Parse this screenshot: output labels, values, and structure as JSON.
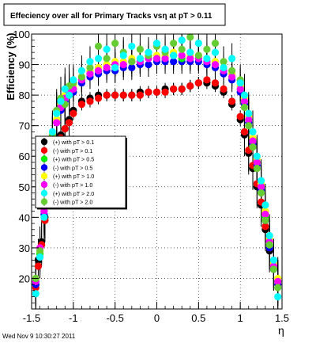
{
  "chart_data": {
    "type": "scatter",
    "title": "Effeciency over all for Primary Tracks vsη at pT > 0.11",
    "xlabel": "η",
    "ylabel": "Efficiency (%)",
    "xlim": [
      -1.5,
      1.5
    ],
    "ylim": [
      10,
      100
    ],
    "x_ticks": [
      -1.5,
      -1,
      -0.5,
      0,
      0.5,
      1,
      1.5
    ],
    "x_tick_labels": [
      "-1.5",
      "-1",
      "-0.5",
      "0",
      "0.5",
      "1",
      "1.5"
    ],
    "y_ticks": [
      20,
      30,
      40,
      50,
      60,
      70,
      80,
      90,
      100
    ],
    "y_tick_labels": [
      "20",
      "30",
      "40",
      "50",
      "60",
      "70",
      "80",
      "90",
      "100"
    ],
    "grid": true,
    "legend_position": "left-middle",
    "footer": "Wed Nov  9 10:30:27 2011",
    "series": [
      {
        "name": "(+) with pT > 0.1",
        "color": "#000000",
        "x": [
          -1.45,
          -1.42,
          -1.38,
          -1.34,
          -1.3,
          -1.25,
          -1.2,
          -1.15,
          -1.1,
          -1.05,
          -1.0,
          -0.9,
          -0.8,
          -0.7,
          -0.6,
          -0.5,
          -0.4,
          -0.3,
          -0.2,
          -0.1,
          0.0,
          0.1,
          0.2,
          0.3,
          0.4,
          0.5,
          0.6,
          0.7,
          0.8,
          0.9,
          1.0,
          1.05,
          1.1,
          1.15,
          1.2,
          1.25,
          1.3,
          1.35,
          1.4,
          1.45
        ],
        "y": [
          18,
          26,
          32,
          40,
          52,
          60,
          64,
          67,
          69,
          72,
          75,
          78,
          79,
          80,
          80,
          80,
          80,
          80,
          81,
          81,
          81,
          82,
          82,
          82,
          83,
          84,
          84,
          83,
          81,
          77,
          72,
          67,
          61,
          56,
          50,
          44,
          36,
          29,
          23,
          19
        ]
      },
      {
        "name": "(-) with pT > 0.1",
        "color": "#ff0000",
        "x": [
          -1.45,
          -1.42,
          -1.38,
          -1.34,
          -1.3,
          -1.25,
          -1.2,
          -1.15,
          -1.1,
          -1.05,
          -1.0,
          -0.9,
          -0.8,
          -0.7,
          -0.6,
          -0.5,
          -0.4,
          -0.3,
          -0.2,
          -0.1,
          0.0,
          0.1,
          0.2,
          0.3,
          0.4,
          0.5,
          0.6,
          0.7,
          0.8,
          0.9,
          1.0,
          1.05,
          1.1,
          1.15,
          1.2,
          1.25,
          1.3,
          1.35,
          1.4,
          1.45
        ],
        "y": [
          17,
          24,
          31,
          39,
          51,
          59,
          63,
          66,
          69,
          71,
          74,
          77,
          78,
          79,
          80,
          80,
          80,
          80,
          80,
          81,
          81,
          81,
          82,
          82,
          83,
          84,
          85,
          84,
          82,
          78,
          73,
          68,
          62,
          57,
          51,
          45,
          37,
          30,
          24,
          18
        ]
      },
      {
        "name": "(+) with pT > 0.5",
        "color": "#00ee00",
        "x": [
          -1.45,
          -1.4,
          -1.35,
          -1.3,
          -1.25,
          -1.2,
          -1.15,
          -1.1,
          -1.05,
          -1.0,
          -0.9,
          -0.8,
          -0.7,
          -0.6,
          -0.5,
          -0.4,
          -0.3,
          -0.2,
          -0.1,
          0.0,
          0.1,
          0.2,
          0.3,
          0.4,
          0.5,
          0.6,
          0.7,
          0.8,
          0.9,
          1.0,
          1.05,
          1.1,
          1.15,
          1.2,
          1.25,
          1.3,
          1.35,
          1.4,
          1.45
        ],
        "y": [
          19,
          28,
          42,
          56,
          66,
          72,
          76,
          79,
          80,
          82,
          85,
          87,
          88,
          89,
          90,
          90,
          91,
          91,
          92,
          92,
          92,
          93,
          92,
          92,
          92,
          91,
          90,
          88,
          86,
          82,
          78,
          72,
          65,
          58,
          50,
          40,
          31,
          24,
          19
        ]
      },
      {
        "name": "(-) with pT > 0.5",
        "color": "#0000ff",
        "x": [
          -1.45,
          -1.4,
          -1.35,
          -1.3,
          -1.25,
          -1.2,
          -1.15,
          -1.1,
          -1.05,
          -1.0,
          -0.9,
          -0.8,
          -0.7,
          -0.6,
          -0.5,
          -0.4,
          -0.3,
          -0.2,
          -0.1,
          0.0,
          0.1,
          0.2,
          0.3,
          0.4,
          0.5,
          0.6,
          0.7,
          0.8,
          0.9,
          1.0,
          1.05,
          1.1,
          1.15,
          1.2,
          1.25,
          1.3,
          1.35,
          1.4,
          1.45
        ],
        "y": [
          18,
          27,
          41,
          55,
          65,
          71,
          75,
          78,
          80,
          81,
          84,
          86,
          87,
          88,
          88,
          89,
          89,
          90,
          90,
          91,
          91,
          91,
          91,
          91,
          91,
          90,
          89,
          87,
          85,
          81,
          77,
          71,
          64,
          57,
          49,
          39,
          30,
          23,
          18
        ]
      },
      {
        "name": "(+) with pT > 1.0",
        "color": "#ffff00",
        "x": [
          -1.45,
          -1.4,
          -1.35,
          -1.3,
          -1.25,
          -1.2,
          -1.15,
          -1.1,
          -1.05,
          -1.0,
          -0.9,
          -0.8,
          -0.7,
          -0.6,
          -0.5,
          -0.4,
          -0.3,
          -0.2,
          -0.1,
          0.0,
          0.1,
          0.2,
          0.3,
          0.4,
          0.5,
          0.6,
          0.7,
          0.8,
          0.9,
          1.0,
          1.05,
          1.1,
          1.15,
          1.2,
          1.25,
          1.3,
          1.35,
          1.4,
          1.45
        ],
        "y": [
          20,
          29,
          43,
          57,
          67,
          72,
          77,
          80,
          81,
          83,
          86,
          88,
          89,
          90,
          91,
          91,
          92,
          92,
          93,
          93,
          93,
          94,
          93,
          93,
          93,
          92,
          91,
          89,
          87,
          83,
          79,
          73,
          66,
          59,
          51,
          42,
          33,
          25,
          20
        ]
      },
      {
        "name": "(-) with pT > 1.0",
        "color": "#ff00ff",
        "x": [
          -1.45,
          -1.4,
          -1.35,
          -1.3,
          -1.25,
          -1.2,
          -1.15,
          -1.1,
          -1.05,
          -1.0,
          -0.9,
          -0.8,
          -0.7,
          -0.6,
          -0.5,
          -0.4,
          -0.3,
          -0.2,
          -0.1,
          0.0,
          0.1,
          0.2,
          0.3,
          0.4,
          0.5,
          0.6,
          0.7,
          0.8,
          0.9,
          1.0,
          1.05,
          1.1,
          1.15,
          1.2,
          1.25,
          1.3,
          1.35,
          1.4,
          1.45
        ],
        "y": [
          19,
          30,
          42,
          55,
          66,
          71,
          76,
          79,
          81,
          82,
          85,
          87,
          88,
          89,
          90,
          90,
          91,
          91,
          92,
          92,
          92,
          93,
          93,
          92,
          92,
          91,
          90,
          88,
          86,
          82,
          78,
          72,
          65,
          58,
          50,
          41,
          32,
          24,
          19
        ]
      },
      {
        "name": "(+) with pT > 2.0",
        "color": "#00ffff",
        "x": [
          -1.45,
          -1.4,
          -1.35,
          -1.3,
          -1.25,
          -1.2,
          -1.15,
          -1.1,
          -1.05,
          -1.0,
          -0.9,
          -0.8,
          -0.7,
          -0.6,
          -0.5,
          -0.4,
          -0.3,
          -0.2,
          -0.1,
          0.0,
          0.1,
          0.2,
          0.3,
          0.4,
          0.5,
          0.6,
          0.7,
          0.8,
          0.9,
          1.0,
          1.05,
          1.1,
          1.15,
          1.2,
          1.25,
          1.3,
          1.35,
          1.4,
          1.45
        ],
        "y": [
          15,
          27,
          40,
          54,
          68,
          74,
          78,
          82,
          80,
          85,
          88,
          91,
          92,
          95,
          89,
          93,
          96,
          92,
          94,
          97,
          95,
          93,
          98,
          94,
          97,
          92,
          94,
          89,
          92,
          84,
          80,
          74,
          68,
          60,
          52,
          44,
          34,
          26,
          14
        ]
      },
      {
        "name": "(-) with pT > 2.0",
        "color": "#66cc33",
        "x": [
          -1.45,
          -1.4,
          -1.35,
          -1.3,
          -1.25,
          -1.2,
          -1.15,
          -1.1,
          -1.05,
          -1.0,
          -0.9,
          -0.8,
          -0.7,
          -0.6,
          -0.5,
          -0.4,
          -0.3,
          -0.2,
          -0.1,
          0.0,
          0.1,
          0.2,
          0.3,
          0.4,
          0.5,
          0.6,
          0.7,
          0.8,
          0.9,
          1.0,
          1.05,
          1.1,
          1.15,
          1.2,
          1.25,
          1.3,
          1.35,
          1.4,
          1.45
        ],
        "y": [
          20,
          29,
          44,
          58,
          67,
          75,
          79,
          77,
          83,
          84,
          86,
          89,
          96,
          92,
          97,
          94,
          91,
          95,
          93,
          96,
          94,
          97,
          95,
          99,
          93,
          95,
          97,
          91,
          88,
          85,
          76,
          70,
          63,
          56,
          48,
          39,
          31,
          23,
          17
        ]
      }
    ]
  }
}
